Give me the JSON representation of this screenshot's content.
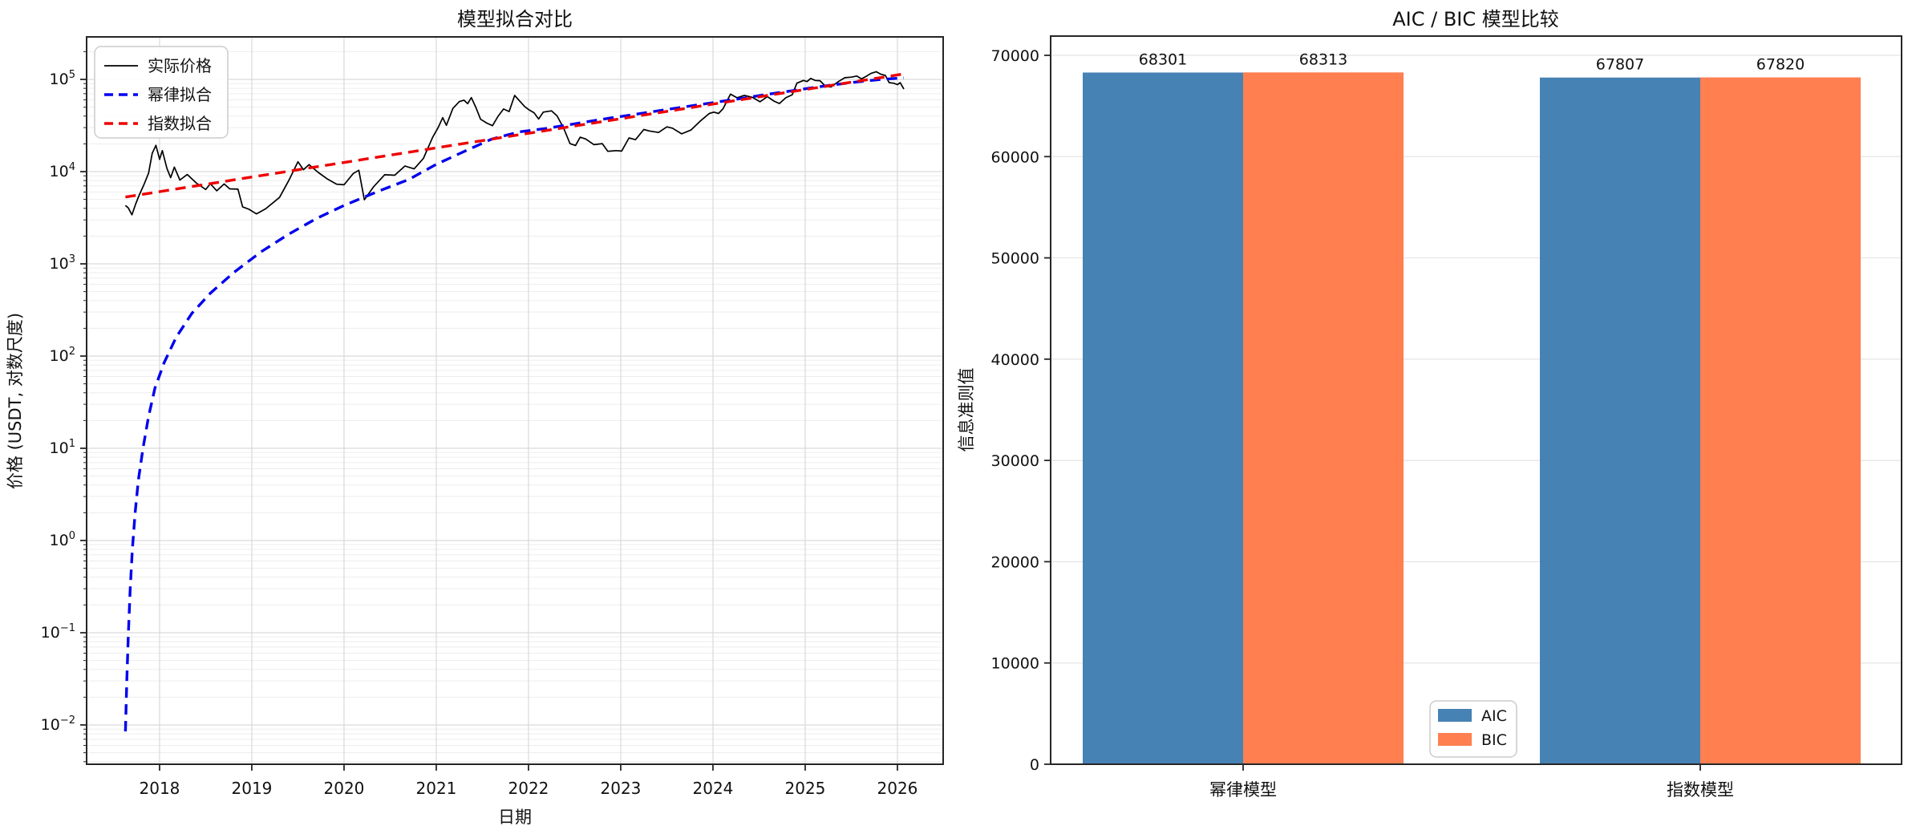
{
  "colors": {
    "actual": "#000000",
    "power_fit": "#0000ee",
    "exp_fit": "#ee0000",
    "aic": "#4682B4",
    "bic": "#FF7F50",
    "grid_major": "#d9d9d9",
    "grid_minor": "#ededed",
    "spine": "#262626",
    "legend_border": "#cccccc"
  },
  "chart_data": [
    {
      "type": "line",
      "title": "模型拟合对比",
      "xlabel": "日期",
      "ylabel": "价格 (USDT, 对数尺度)",
      "yscale": "log",
      "grid": true,
      "legend_position": "upper left",
      "xlim": [
        2017.209,
        2026.496
      ],
      "ylim_log10": [
        -2.426,
        5.461
      ],
      "x_ticks": [
        2018,
        2019,
        2020,
        2021,
        2022,
        2023,
        2024,
        2025,
        2026
      ],
      "y_tick_exponents": [
        5,
        4,
        3,
        2,
        1,
        0,
        -1,
        -2
      ],
      "series": [
        {
          "name": "实际价格",
          "color_key": "actual",
          "line": "solid",
          "points": [
            [
              2017.63,
              4300
            ],
            [
              2017.66,
              4050
            ],
            [
              2017.7,
              3400
            ],
            [
              2017.74,
              4450
            ],
            [
              2017.78,
              5600
            ],
            [
              2017.83,
              7200
            ],
            [
              2017.88,
              9600
            ],
            [
              2017.92,
              15800
            ],
            [
              2017.96,
              19300
            ],
            [
              2018.0,
              13600
            ],
            [
              2018.03,
              16900
            ],
            [
              2018.08,
              10800
            ],
            [
              2018.12,
              8600
            ],
            [
              2018.16,
              11200
            ],
            [
              2018.22,
              8100
            ],
            [
              2018.3,
              9300
            ],
            [
              2018.4,
              7500
            ],
            [
              2018.5,
              6400
            ],
            [
              2018.55,
              7400
            ],
            [
              2018.62,
              6200
            ],
            [
              2018.7,
              7350
            ],
            [
              2018.76,
              6500
            ],
            [
              2018.85,
              6450
            ],
            [
              2018.9,
              4150
            ],
            [
              2018.97,
              3900
            ],
            [
              2019.05,
              3480
            ],
            [
              2019.15,
              3950
            ],
            [
              2019.3,
              5250
            ],
            [
              2019.4,
              8000
            ],
            [
              2019.5,
              12800
            ],
            [
              2019.56,
              10500
            ],
            [
              2019.62,
              11900
            ],
            [
              2019.72,
              9800
            ],
            [
              2019.82,
              8300
            ],
            [
              2019.92,
              7300
            ],
            [
              2020.0,
              7200
            ],
            [
              2020.1,
              9550
            ],
            [
              2020.16,
              10350
            ],
            [
              2020.22,
              4950
            ],
            [
              2020.32,
              6850
            ],
            [
              2020.44,
              9250
            ],
            [
              2020.55,
              9150
            ],
            [
              2020.66,
              11500
            ],
            [
              2020.76,
              10700
            ],
            [
              2020.86,
              13900
            ],
            [
              2020.96,
              23500
            ],
            [
              2021.02,
              30000
            ],
            [
              2021.07,
              38500
            ],
            [
              2021.11,
              31800
            ],
            [
              2021.18,
              48500
            ],
            [
              2021.25,
              57500
            ],
            [
              2021.3,
              59500
            ],
            [
              2021.34,
              54500
            ],
            [
              2021.38,
              63500
            ],
            [
              2021.43,
              49500
            ],
            [
              2021.48,
              37000
            ],
            [
              2021.55,
              33500
            ],
            [
              2021.61,
              31500
            ],
            [
              2021.67,
              39800
            ],
            [
              2021.73,
              47800
            ],
            [
              2021.79,
              44800
            ],
            [
              2021.85,
              67000
            ],
            [
              2021.91,
              57500
            ],
            [
              2021.96,
              50500
            ],
            [
              2022.01,
              46500
            ],
            [
              2022.06,
              43500
            ],
            [
              2022.11,
              37200
            ],
            [
              2022.16,
              44200
            ],
            [
              2022.25,
              45600
            ],
            [
              2022.31,
              40200
            ],
            [
              2022.38,
              29700
            ],
            [
              2022.45,
              20100
            ],
            [
              2022.51,
              19200
            ],
            [
              2022.56,
              23600
            ],
            [
              2022.62,
              22600
            ],
            [
              2022.71,
              19600
            ],
            [
              2022.8,
              20100
            ],
            [
              2022.86,
              16600
            ],
            [
              2022.95,
              16900
            ],
            [
              2023.01,
              16700
            ],
            [
              2023.09,
              23200
            ],
            [
              2023.16,
              22200
            ],
            [
              2023.25,
              28600
            ],
            [
              2023.31,
              27600
            ],
            [
              2023.41,
              26600
            ],
            [
              2023.5,
              30600
            ],
            [
              2023.56,
              29600
            ],
            [
              2023.66,
              25700
            ],
            [
              2023.76,
              28200
            ],
            [
              2023.86,
              35200
            ],
            [
              2023.96,
              42700
            ],
            [
              2024.01,
              44200
            ],
            [
              2024.06,
              42700
            ],
            [
              2024.11,
              48200
            ],
            [
              2024.19,
              69200
            ],
            [
              2024.26,
              63200
            ],
            [
              2024.34,
              67200
            ],
            [
              2024.43,
              63700
            ],
            [
              2024.51,
              57200
            ],
            [
              2024.59,
              65200
            ],
            [
              2024.66,
              58200
            ],
            [
              2024.72,
              54700
            ],
            [
              2024.79,
              63200
            ],
            [
              2024.86,
              68200
            ],
            [
              2024.91,
              91000
            ],
            [
              2024.98,
              97500
            ],
            [
              2025.02,
              94800
            ],
            [
              2025.06,
              102500
            ],
            [
              2025.11,
              97300
            ],
            [
              2025.16,
              96800
            ],
            [
              2025.22,
              84200
            ],
            [
              2025.28,
              82800
            ],
            [
              2025.36,
              94800
            ],
            [
              2025.43,
              104300
            ],
            [
              2025.5,
              105800
            ],
            [
              2025.56,
              108800
            ],
            [
              2025.61,
              101300
            ],
            [
              2025.66,
              107800
            ],
            [
              2025.71,
              115800
            ],
            [
              2025.77,
              121300
            ],
            [
              2025.82,
              113800
            ],
            [
              2025.87,
              110300
            ],
            [
              2025.91,
              92300
            ],
            [
              2025.96,
              90800
            ],
            [
              2026.0,
              87800
            ],
            [
              2026.03,
              92200
            ],
            [
              2026.07,
              78500
            ]
          ]
        },
        {
          "name": "幂律拟合",
          "color_key": "power_fit",
          "line": "dashed",
          "points": [
            [
              2017.63,
              0.0085
            ],
            [
              2017.645,
              0.03
            ],
            [
              2017.66,
              0.09
            ],
            [
              2017.68,
              0.28
            ],
            [
              2017.705,
              0.8
            ],
            [
              2017.735,
              2.0
            ],
            [
              2017.77,
              4.5
            ],
            [
              2017.82,
              10
            ],
            [
              2017.88,
              22
            ],
            [
              2017.95,
              45
            ],
            [
              2018.05,
              85
            ],
            [
              2018.18,
              160
            ],
            [
              2018.35,
              290
            ],
            [
              2018.55,
              480
            ],
            [
              2018.8,
              800
            ],
            [
              2019.1,
              1350
            ],
            [
              2019.4,
              2100
            ],
            [
              2019.7,
              3100
            ],
            [
              2020.0,
              4300
            ],
            [
              2020.35,
              6000
            ],
            [
              2020.7,
              8200
            ],
            [
              2021.0,
              12000
            ],
            [
              2021.3,
              16500
            ],
            [
              2021.6,
              22500
            ],
            [
              2021.9,
              27000
            ],
            [
              2022.2,
              29500
            ],
            [
              2022.5,
              33000
            ],
            [
              2022.8,
              37000
            ],
            [
              2023.1,
              41000
            ],
            [
              2023.4,
              45500
            ],
            [
              2023.7,
              50500
            ],
            [
              2024.0,
              56000
            ],
            [
              2024.3,
              62000
            ],
            [
              2024.6,
              69000
            ],
            [
              2024.9,
              76500
            ],
            [
              2025.2,
              84500
            ],
            [
              2025.5,
              92500
            ],
            [
              2025.8,
              99500
            ],
            [
              2026.07,
              104000
            ]
          ]
        },
        {
          "name": "指数拟合",
          "color_key": "exp_fit",
          "line": "dashed",
          "points": [
            [
              2017.63,
              5300
            ],
            [
              2026.1,
              116000
            ]
          ]
        }
      ]
    },
    {
      "type": "bar",
      "title": "AIC / BIC 模型比较",
      "ylabel": "信息准则值",
      "categories": [
        "幂律模型",
        "指数模型"
      ],
      "series": [
        {
          "name": "AIC",
          "color_key": "aic",
          "values": [
            68301,
            67807
          ]
        },
        {
          "name": "BIC",
          "color_key": "bic",
          "values": [
            68313,
            67820
          ]
        }
      ],
      "ylim": [
        0,
        70000
      ],
      "y_tick_step": 10000,
      "grid": true,
      "legend_position": "lower center"
    }
  ]
}
